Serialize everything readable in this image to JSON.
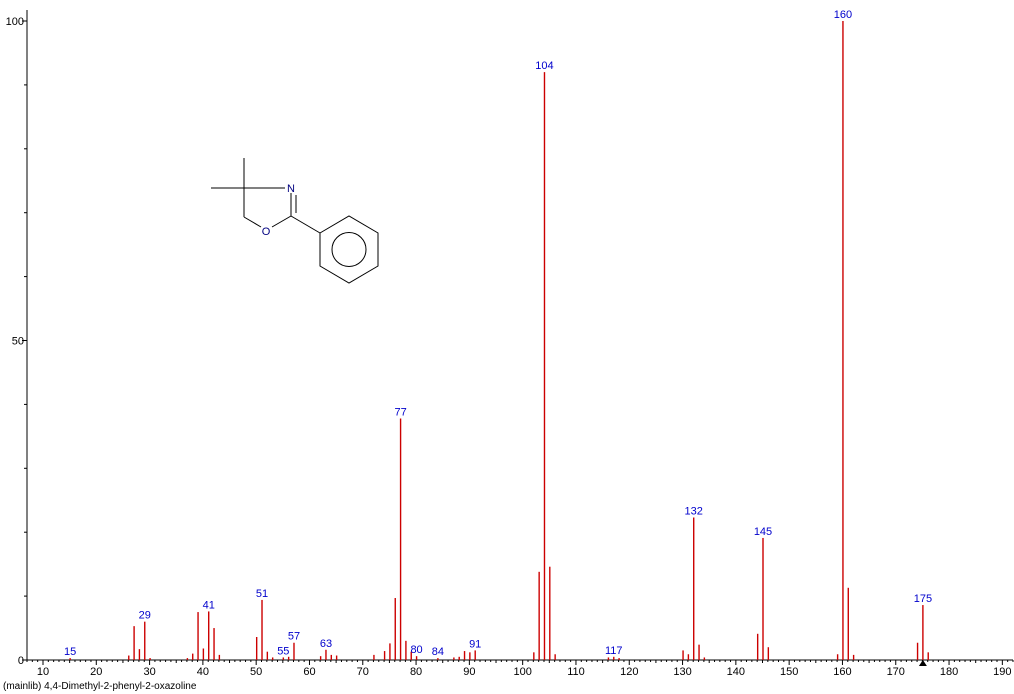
{
  "chart_data": {
    "type": "bar",
    "title": "",
    "xlabel": "",
    "ylabel": "",
    "xlim": [
      7,
      192
    ],
    "ylim": [
      0,
      100
    ],
    "x_ticks": [
      10,
      20,
      30,
      40,
      50,
      60,
      70,
      80,
      90,
      100,
      110,
      120,
      130,
      140,
      150,
      160,
      170,
      180,
      190
    ],
    "y_ticks": [
      0,
      50,
      100
    ],
    "peaks": [
      {
        "mz": 15,
        "intensity": 0.3
      },
      {
        "mz": 26,
        "intensity": 0.7
      },
      {
        "mz": 27,
        "intensity": 5.3
      },
      {
        "mz": 28,
        "intensity": 1.7
      },
      {
        "mz": 29,
        "intensity": 6.0
      },
      {
        "mz": 30,
        "intensity": 0.3
      },
      {
        "mz": 37,
        "intensity": 0.3
      },
      {
        "mz": 38,
        "intensity": 1.0
      },
      {
        "mz": 39,
        "intensity": 7.5
      },
      {
        "mz": 40,
        "intensity": 1.8
      },
      {
        "mz": 41,
        "intensity": 7.6
      },
      {
        "mz": 42,
        "intensity": 5.0
      },
      {
        "mz": 43,
        "intensity": 0.8
      },
      {
        "mz": 50,
        "intensity": 3.6
      },
      {
        "mz": 51,
        "intensity": 9.4
      },
      {
        "mz": 52,
        "intensity": 1.3
      },
      {
        "mz": 53,
        "intensity": 0.4
      },
      {
        "mz": 55,
        "intensity": 0.4
      },
      {
        "mz": 56,
        "intensity": 0.5
      },
      {
        "mz": 57,
        "intensity": 2.7
      },
      {
        "mz": 62,
        "intensity": 0.6
      },
      {
        "mz": 63,
        "intensity": 1.6
      },
      {
        "mz": 64,
        "intensity": 0.8
      },
      {
        "mz": 65,
        "intensity": 0.7
      },
      {
        "mz": 72,
        "intensity": 0.8
      },
      {
        "mz": 74,
        "intensity": 1.4
      },
      {
        "mz": 75,
        "intensity": 2.6
      },
      {
        "mz": 76,
        "intensity": 9.7
      },
      {
        "mz": 77,
        "intensity": 37.8
      },
      {
        "mz": 78,
        "intensity": 3.0
      },
      {
        "mz": 79,
        "intensity": 1.3
      },
      {
        "mz": 80,
        "intensity": 0.6
      },
      {
        "mz": 84,
        "intensity": 0.3
      },
      {
        "mz": 87,
        "intensity": 0.4
      },
      {
        "mz": 88,
        "intensity": 0.5
      },
      {
        "mz": 89,
        "intensity": 1.4
      },
      {
        "mz": 90,
        "intensity": 1.2
      },
      {
        "mz": 91,
        "intensity": 1.5
      },
      {
        "mz": 102,
        "intensity": 1.2
      },
      {
        "mz": 103,
        "intensity": 13.8
      },
      {
        "mz": 104,
        "intensity": 92.0
      },
      {
        "mz": 105,
        "intensity": 14.6
      },
      {
        "mz": 106,
        "intensity": 0.9
      },
      {
        "mz": 116,
        "intensity": 0.4
      },
      {
        "mz": 117,
        "intensity": 0.5
      },
      {
        "mz": 118,
        "intensity": 0.3
      },
      {
        "mz": 130,
        "intensity": 1.5
      },
      {
        "mz": 131,
        "intensity": 0.9
      },
      {
        "mz": 132,
        "intensity": 22.3
      },
      {
        "mz": 133,
        "intensity": 2.4
      },
      {
        "mz": 134,
        "intensity": 0.4
      },
      {
        "mz": 144,
        "intensity": 4.1
      },
      {
        "mz": 145,
        "intensity": 19.1
      },
      {
        "mz": 146,
        "intensity": 2.0
      },
      {
        "mz": 159,
        "intensity": 0.9
      },
      {
        "mz": 160,
        "intensity": 100.0
      },
      {
        "mz": 161,
        "intensity": 11.3
      },
      {
        "mz": 162,
        "intensity": 0.8
      },
      {
        "mz": 174,
        "intensity": 2.7
      },
      {
        "mz": 175,
        "intensity": 8.6
      },
      {
        "mz": 176,
        "intensity": 1.2
      }
    ],
    "peak_labels": [
      {
        "mz": 15,
        "intensity": 0.3,
        "label": "15"
      },
      {
        "mz": 29,
        "intensity": 6.0,
        "label": "29"
      },
      {
        "mz": 41,
        "intensity": 7.6,
        "label": "41"
      },
      {
        "mz": 51,
        "intensity": 9.4,
        "label": "51"
      },
      {
        "mz": 55,
        "intensity": 0.4,
        "label": "55"
      },
      {
        "mz": 57,
        "intensity": 2.7,
        "label": "57"
      },
      {
        "mz": 63,
        "intensity": 1.6,
        "label": "63"
      },
      {
        "mz": 77,
        "intensity": 37.8,
        "label": "77"
      },
      {
        "mz": 80,
        "intensity": 0.6,
        "label": "80"
      },
      {
        "mz": 84,
        "intensity": 0.3,
        "label": "84"
      },
      {
        "mz": 91,
        "intensity": 1.5,
        "label": "91"
      },
      {
        "mz": 104,
        "intensity": 92.0,
        "label": "104"
      },
      {
        "mz": 117,
        "intensity": 0.5,
        "label": "117"
      },
      {
        "mz": 132,
        "intensity": 22.3,
        "label": "132"
      },
      {
        "mz": 145,
        "intensity": 19.1,
        "label": "145"
      },
      {
        "mz": 160,
        "intensity": 100.0,
        "label": "160"
      },
      {
        "mz": 175,
        "intensity": 8.6,
        "label": "175"
      }
    ],
    "molecular_ion_marker_mz": 175,
    "grid": false,
    "legend": "none"
  },
  "structure": {
    "atom_n": "N",
    "atom_o": "O"
  },
  "footer": {
    "text": "(mainlib) 4,4-Dimethyl-2-phenyl-2-oxazoline"
  },
  "colors": {
    "peak": "#cc0000",
    "label": "#0000cc",
    "axis": "#000000"
  }
}
